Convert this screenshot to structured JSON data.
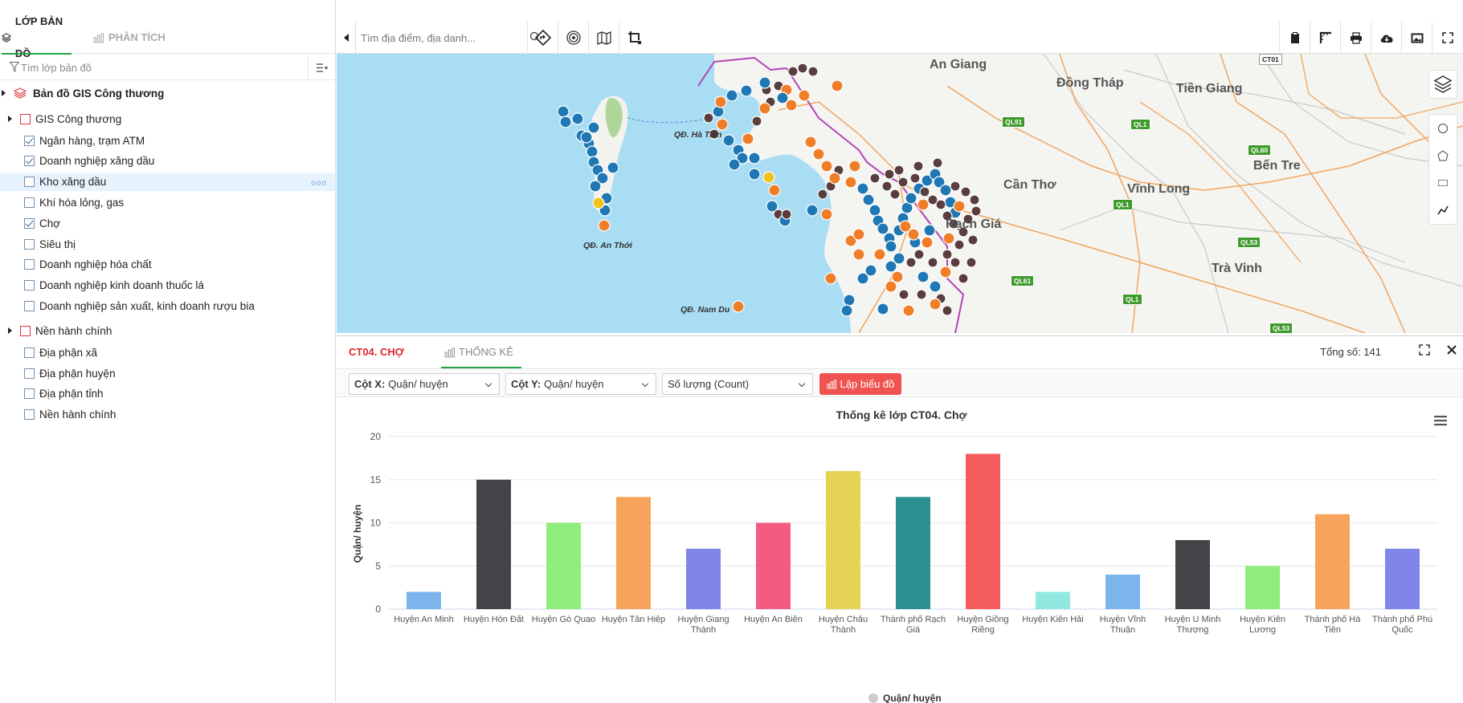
{
  "left_panel": {
    "tab_layers": "LỚP BẢN ĐỒ",
    "tab_analysis": "PHÂN TÍCH",
    "search_placeholder": "Tìm lớp bản đồ",
    "root": "Bản đồ GIS Công thương",
    "groups": [
      {
        "label": "GIS Công thương",
        "items": [
          {
            "label": "Ngân hàng, trạm ATM",
            "checked": true
          },
          {
            "label": "Doanh nghiệp xăng dầu",
            "checked": true
          },
          {
            "label": "Kho xăng dầu",
            "checked": false,
            "highlighted": true
          },
          {
            "label": "Khí hóa lỏng, gas",
            "checked": false
          },
          {
            "label": "Chợ",
            "checked": true
          },
          {
            "label": "Siêu thị",
            "checked": false
          },
          {
            "label": "Doanh nghiệp hóa chất",
            "checked": false
          },
          {
            "label": "Doanh nghiệp kinh doanh thuốc lá",
            "checked": false
          },
          {
            "label": "Doanh nghiệp sản xuất, kinh doanh rượu bia",
            "checked": false
          }
        ]
      },
      {
        "label": "Nền hành chính",
        "items": [
          {
            "label": "Địa phận xã",
            "checked": false
          },
          {
            "label": "Địa phận huyện",
            "checked": false
          },
          {
            "label": "Địa phận tỉnh",
            "checked": false
          },
          {
            "label": "Nền hành chính",
            "checked": false
          }
        ]
      }
    ]
  },
  "map": {
    "search_placeholder": "Tìm địa điểm, địa danh...",
    "provinces": [
      "An Giang",
      "Đồng Tháp",
      "Tiền Giang",
      "Cần Thơ",
      "Vĩnh Long",
      "Bến Tre",
      "Trà Vinh",
      "Rạch Giá"
    ],
    "islands": [
      "QĐ. Hà Tiên",
      "QĐ. An Thới",
      "QĐ. Nam Du"
    ],
    "roads": [
      "CT01",
      "QL91",
      "QL1",
      "QL60",
      "QL1",
      "QL53",
      "QL61",
      "QL1",
      "QL53"
    ]
  },
  "stats_panel": {
    "tab_layer": "CT04. CHỢ",
    "tab_stats": "THỐNG KÊ",
    "total": "Tổng số: 141",
    "col_x_label": "Cột X:",
    "col_x_value": "Quận/ huyện",
    "col_y_label": "Cột Y:",
    "col_y_value": "Quận/ huyện",
    "agg_value": "Số lượng (Count)",
    "build_button": "Lập biểu đồ"
  },
  "chart_data": {
    "type": "bar",
    "title": "Thống kê lớp CT04. Chợ",
    "ylabel": "Quận/ huyện",
    "xlabel": "",
    "ylim": [
      0,
      20
    ],
    "yticks": [
      0,
      5,
      10,
      15,
      20
    ],
    "legend": "Quận/ huyện",
    "categories": [
      "Huyện An Minh",
      "Huyện Hòn Đất",
      "Huyện Gò Quao",
      "Huyện Tân Hiệp",
      "Huyện Giang Thành",
      "Huyện An Biên",
      "Huyện Châu Thành",
      "Thành phố Rạch Giá",
      "Huyện Giồng Riềng",
      "Huyện Kiên Hải",
      "Huyện Vĩnh Thuận",
      "Huyện U Minh Thượng",
      "Huyện Kiên Lương",
      "Thành phố Hà Tiên",
      "Thành phố Phú Quốc"
    ],
    "values": [
      2,
      15,
      10,
      13,
      7,
      10,
      16,
      13,
      18,
      2,
      4,
      8,
      5,
      11,
      7
    ],
    "colors": [
      "#7cb5ec",
      "#434348",
      "#90ed7d",
      "#f7a35c",
      "#8085e9",
      "#f15c80",
      "#e4d354",
      "#2b908f",
      "#f45b5b",
      "#91e8e1",
      "#7cb5ec",
      "#434348",
      "#90ed7d",
      "#f7a35c",
      "#8085e9"
    ]
  }
}
